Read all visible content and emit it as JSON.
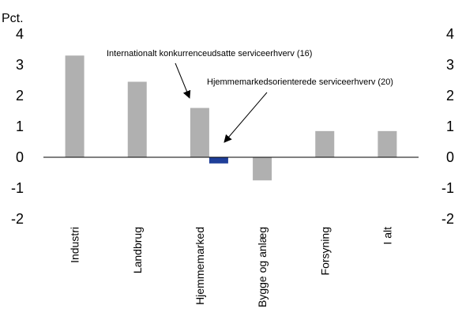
{
  "chart_data": {
    "type": "bar",
    "unit_label": "Pct.",
    "categories": [
      "Industri",
      "Landbrug",
      "Hjemmemarked",
      "Bygge og anlæg",
      "Forsyning",
      "I alt"
    ],
    "series": [
      {
        "values": [
          3.3,
          2.45,
          1.6,
          -0.75,
          0.85,
          0.85
        ],
        "color": "#b0b0b0"
      },
      {
        "values": [
          null,
          null,
          -0.2,
          null,
          null,
          null
        ],
        "color": "#1f3f99"
      }
    ],
    "ylim": [
      -2,
      4
    ],
    "yticks": [
      4,
      3,
      2,
      1,
      0,
      -1,
      -2
    ],
    "grid": false,
    "secondary_axis": true,
    "annotations": [
      {
        "text": "Internationalt konkurrenceudsatte serviceerhverv (16)",
        "points_to": "Hjemmemarked",
        "series": 0
      },
      {
        "text": "Hjemmemarkedsorienterede serviceerhverv (20)",
        "points_to": "Hjemmemarked",
        "series": 1
      }
    ]
  }
}
